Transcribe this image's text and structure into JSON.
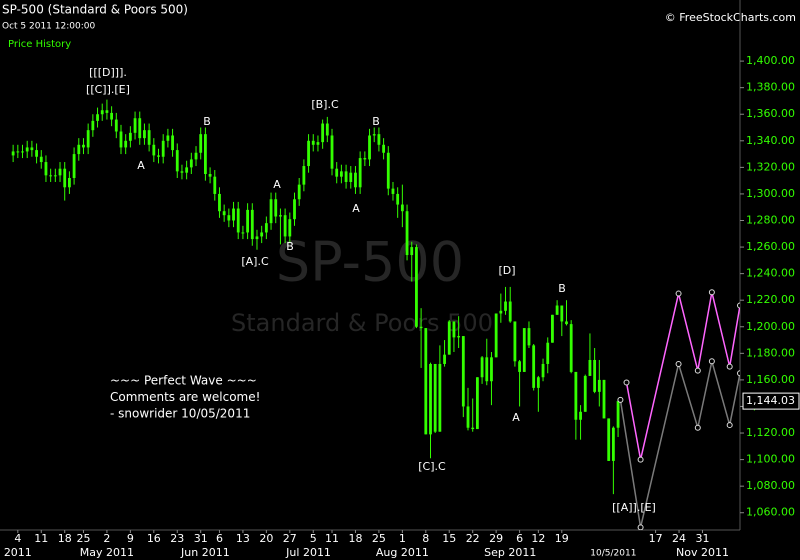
{
  "header": {
    "title": "SP-500 (Standard & Poors 500)",
    "timestamp": "Oct 5 2011 12:00:00",
    "panel": "Price History",
    "credit": "© FreeStockCharts.com"
  },
  "chart_data": {
    "type": "candlestick",
    "watermark": "SP-500",
    "watermark_subtitle": "Standard & Poors 500",
    "color": "#33ff00",
    "grid": false,
    "x": [
      -1,
      0,
      1,
      2,
      3,
      4,
      5,
      6,
      7,
      8,
      9,
      10,
      11,
      12,
      13,
      14,
      15,
      16,
      17,
      18,
      19,
      20,
      21,
      22,
      23,
      24,
      25,
      26,
      27,
      28,
      29,
      30,
      31,
      32,
      33,
      34,
      35,
      36,
      37,
      38,
      39,
      40,
      41,
      42,
      43,
      44,
      45,
      46,
      47,
      48,
      49,
      50,
      51,
      52,
      53,
      54,
      55,
      56,
      57,
      58,
      59,
      60,
      61,
      62,
      63,
      64,
      65,
      66,
      67,
      68,
      69,
      70,
      71,
      72,
      73,
      74,
      75,
      76,
      77,
      78,
      79,
      80,
      81,
      82,
      83,
      84,
      85,
      86,
      87,
      88,
      89,
      90,
      91,
      92,
      93,
      94,
      95,
      96,
      97,
      98,
      99,
      100,
      101,
      102,
      103,
      104,
      105,
      106,
      107,
      108,
      109,
      110,
      111,
      112,
      113,
      114,
      115,
      116,
      117,
      118,
      119,
      120,
      121,
      122,
      123,
      124,
      125,
      126,
      127,
      128
    ],
    "open": [
      1329,
      1332,
      1332,
      1332,
      1335,
      1333,
      1328,
      1324,
      1314,
      1314,
      1314,
      1319,
      1305,
      1312,
      1330,
      1337,
      1335,
      1348,
      1355,
      1360,
      1363,
      1361,
      1356,
      1347,
      1335,
      1340,
      1346,
      1357,
      1342,
      1348,
      1337,
      1329,
      1328,
      1340,
      1344,
      1333,
      1317,
      1316,
      1320,
      1326,
      1331,
      1345,
      1315,
      1313,
      1300,
      1287,
      1284,
      1280,
      1289,
      1271,
      1271,
      1288,
      1266,
      1268,
      1271,
      1278,
      1296,
      1283,
      1284,
      1268,
      1281,
      1296,
      1307,
      1321,
      1340,
      1337,
      1339,
      1353,
      1344,
      1319,
      1313,
      1317,
      1309,
      1316,
      1305,
      1327,
      1326,
      1344,
      1345,
      1337,
      1331,
      1304,
      1300,
      1292,
      1287,
      1254,
      1260,
      1200,
      1199,
      1119,
      1172,
      1121,
      1172,
      1179,
      1204,
      1192,
      1193,
      1140,
      1124,
      1123,
      1162,
      1177,
      1159,
      1177,
      1210,
      1212,
      1219,
      1204,
      1174,
      1166,
      1199,
      1186,
      1154,
      1162,
      1172,
      1188,
      1209,
      1216,
      1204,
      1202,
      1166,
      1130,
      1136,
      1163,
      1175,
      1151,
      1160,
      1131,
      1099,
      1124
    ],
    "high": [
      1337,
      1337,
      1337,
      1340,
      1340,
      1338,
      1333,
      1329,
      1319,
      1319,
      1324,
      1324,
      1317,
      1335,
      1342,
      1342,
      1353,
      1360,
      1365,
      1368,
      1371,
      1366,
      1361,
      1352,
      1345,
      1351,
      1362,
      1362,
      1353,
      1353,
      1342,
      1334,
      1345,
      1349,
      1349,
      1338,
      1322,
      1325,
      1331,
      1336,
      1350,
      1350,
      1320,
      1318,
      1305,
      1292,
      1289,
      1294,
      1294,
      1276,
      1293,
      1293,
      1273,
      1276,
      1283,
      1301,
      1301,
      1289,
      1289,
      1286,
      1301,
      1312,
      1326,
      1345,
      1345,
      1344,
      1356,
      1358,
      1349,
      1324,
      1322,
      1322,
      1321,
      1321,
      1332,
      1332,
      1349,
      1350,
      1350,
      1342,
      1336,
      1309,
      1305,
      1307,
      1292,
      1264,
      1262,
      1214,
      1199,
      1173,
      1172,
      1186,
      1190,
      1205,
      1204,
      1208,
      1193,
      1154,
      1146,
      1162,
      1178,
      1191,
      1181,
      1210,
      1225,
      1230,
      1230,
      1204,
      1175,
      1199,
      1204,
      1187,
      1163,
      1176,
      1192,
      1209,
      1220,
      1216,
      1220,
      1205,
      1166,
      1141,
      1164,
      1195,
      1184,
      1175,
      1160,
      1131,
      1125,
      1146
    ],
    "low": [
      1324,
      1327,
      1327,
      1327,
      1328,
      1323,
      1319,
      1309,
      1309,
      1309,
      1309,
      1295,
      1300,
      1307,
      1325,
      1330,
      1330,
      1343,
      1350,
      1355,
      1356,
      1351,
      1342,
      1330,
      1330,
      1335,
      1341,
      1337,
      1337,
      1332,
      1324,
      1323,
      1323,
      1335,
      1328,
      1312,
      1311,
      1311,
      1315,
      1321,
      1326,
      1310,
      1308,
      1295,
      1282,
      1279,
      1275,
      1275,
      1266,
      1266,
      1266,
      1261,
      1258,
      1263,
      1266,
      1273,
      1278,
      1262,
      1263,
      1263,
      1276,
      1291,
      1302,
      1316,
      1332,
      1332,
      1334,
      1339,
      1314,
      1308,
      1308,
      1304,
      1304,
      1300,
      1300,
      1321,
      1321,
      1339,
      1332,
      1326,
      1299,
      1295,
      1282,
      1275,
      1250,
      1234,
      1199,
      1169,
      1119,
      1101,
      1120,
      1121,
      1170,
      1179,
      1181,
      1184,
      1132,
      1122,
      1121,
      1123,
      1157,
      1156,
      1141,
      1177,
      1203,
      1209,
      1203,
      1170,
      1140,
      1166,
      1184,
      1152,
      1136,
      1159,
      1165,
      1188,
      1209,
      1193,
      1201,
      1165,
      1115,
      1115,
      1136,
      1163,
      1150,
      1140,
      1131,
      1099,
      1074,
      1117
    ],
    "close": [
      1332,
      1332,
      1332,
      1335,
      1333,
      1328,
      1324,
      1314,
      1314,
      1314,
      1319,
      1305,
      1312,
      1330,
      1337,
      1335,
      1348,
      1355,
      1360,
      1363,
      1361,
      1356,
      1347,
      1335,
      1340,
      1346,
      1357,
      1342,
      1348,
      1337,
      1329,
      1328,
      1340,
      1344,
      1333,
      1317,
      1316,
      1320,
      1326,
      1331,
      1345,
      1315,
      1313,
      1300,
      1287,
      1284,
      1280,
      1289,
      1271,
      1271,
      1288,
      1266,
      1268,
      1271,
      1278,
      1296,
      1283,
      1284,
      1268,
      1281,
      1296,
      1307,
      1321,
      1340,
      1337,
      1339,
      1353,
      1344,
      1319,
      1313,
      1317,
      1309,
      1316,
      1305,
      1327,
      1326,
      1344,
      1345,
      1337,
      1331,
      1304,
      1300,
      1292,
      1287,
      1254,
      1260,
      1200,
      1199,
      1119,
      1172,
      1121,
      1172,
      1179,
      1204,
      1192,
      1193,
      1140,
      1124,
      1123,
      1162,
      1177,
      1159,
      1177,
      1210,
      1212,
      1219,
      1204,
      1174,
      1166,
      1199,
      1186,
      1154,
      1162,
      1172,
      1188,
      1209,
      1216,
      1204,
      1202,
      1166,
      1130,
      1136,
      1163,
      1175,
      1151,
      1160,
      1131,
      1099,
      1124,
      1144.03
    ],
    "last_price": {
      "value": 1144.03,
      "label": "1,144.03"
    },
    "xlim": [
      -3.8,
      154
    ],
    "ylim": [
      1047,
      1446
    ],
    "yticks": [
      {
        "value": 1060,
        "label": "1,060.00"
      },
      {
        "value": 1080,
        "label": "1,080.00"
      },
      {
        "value": 1100,
        "label": "1,100.00"
      },
      {
        "value": 1120,
        "label": "1,120.00"
      },
      {
        "value": 1140,
        "label": "1,140.00"
      },
      {
        "value": 1160,
        "label": "1,160.00"
      },
      {
        "value": 1180,
        "label": "1,180.00"
      },
      {
        "value": 1200,
        "label": "1,200.00"
      },
      {
        "value": 1220,
        "label": "1,220.00"
      },
      {
        "value": 1240,
        "label": "1,240.00"
      },
      {
        "value": 1260,
        "label": "1,260.00"
      },
      {
        "value": 1280,
        "label": "1,280.00"
      },
      {
        "value": 1300,
        "label": "1,300.00"
      },
      {
        "value": 1320,
        "label": "1,320.00"
      },
      {
        "value": 1340,
        "label": "1,340.00"
      },
      {
        "value": 1360,
        "label": "1,360.00"
      },
      {
        "value": 1380,
        "label": "1,380.00"
      },
      {
        "value": 1400,
        "label": "1,400.00"
      }
    ],
    "xticks": [
      {
        "value": 0,
        "label": "4"
      },
      {
        "value": 5,
        "label": "11"
      },
      {
        "value": 10,
        "label": "18"
      },
      {
        "value": 14,
        "label": "25"
      },
      {
        "value": 19,
        "label": "2"
      },
      {
        "value": 24,
        "label": "9"
      },
      {
        "value": 29,
        "label": "16"
      },
      {
        "value": 34,
        "label": "23"
      },
      {
        "value": 39,
        "label": "31"
      },
      {
        "value": 43,
        "label": "6"
      },
      {
        "value": 48,
        "label": "13"
      },
      {
        "value": 53,
        "label": "20"
      },
      {
        "value": 58,
        "label": "27"
      },
      {
        "value": 63,
        "label": "5"
      },
      {
        "value": 67,
        "label": "11"
      },
      {
        "value": 72,
        "label": "18"
      },
      {
        "value": 77,
        "label": "25"
      },
      {
        "value": 82,
        "label": "1"
      },
      {
        "value": 87,
        "label": "8"
      },
      {
        "value": 92,
        "label": "15"
      },
      {
        "value": 97,
        "label": "22"
      },
      {
        "value": 102,
        "label": "29"
      },
      {
        "value": 107,
        "label": "6"
      },
      {
        "value": 111,
        "label": "12"
      },
      {
        "value": 116,
        "label": "19"
      },
      {
        "value": 136,
        "label": "17"
      },
      {
        "value": 141,
        "label": "24"
      },
      {
        "value": 146,
        "label": "31"
      }
    ],
    "xticks_month": [
      {
        "value": 0,
        "label": "2011"
      },
      {
        "value": 19,
        "label": "May 2011"
      },
      {
        "value": 40,
        "label": "Jun 2011"
      },
      {
        "value": 62,
        "label": "Jul 2011"
      },
      {
        "value": 82,
        "label": "Aug 2011"
      },
      {
        "value": 105,
        "label": "Sep 2011"
      },
      {
        "value": 127,
        "label": "10/5/2011"
      },
      {
        "value": 146,
        "label": "Nov 2011"
      }
    ],
    "projections": [
      {
        "color": "#ff66ff",
        "x": [
          129.8,
          132.8,
          140.9,
          145,
          148,
          151.8,
          154
        ],
        "values": [
          1158,
          1100,
          1225,
          1167,
          1226,
          1170,
          1216
        ]
      },
      {
        "color": "#7a7a7a",
        "x": [
          128.5,
          132.8,
          140.9,
          145,
          148,
          151.8,
          154
        ],
        "values": [
          1145,
          1049,
          1172,
          1124,
          1174,
          1126,
          1165
        ]
      }
    ],
    "annotations": [
      "[[[D]]].",
      "[[C]].[E]",
      "B",
      "A",
      "A",
      "B",
      "[A].C",
      "[B].C",
      "B",
      "A",
      "[C].C",
      "[D]",
      "A",
      "B",
      "[[A]].[E]"
    ],
    "note": [
      "~~~ Perfect Wave ~~~",
      "Comments are welcome!",
      "- snowrider  10/05/2011"
    ]
  }
}
